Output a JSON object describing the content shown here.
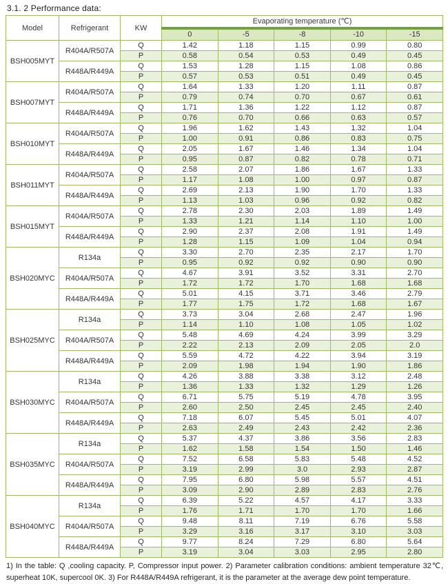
{
  "title": "3.1. 2 Performance data:",
  "table": {
    "col_headers": {
      "model": "Model",
      "refrigerant": "Refrigerant",
      "kw": "KW",
      "evap": "Evaporating temperature (℃)"
    },
    "temps": [
      "0",
      "-5",
      "-8",
      "-10",
      "-15"
    ],
    "row_labels": {
      "q": "Q",
      "p": "P"
    },
    "models": [
      {
        "name": "BSH005MYT",
        "refrigerants": [
          {
            "name": "R404A/R507A",
            "Q": [
              "1.42",
              "1.18",
              "1.15",
              "0.99",
              "0.80"
            ],
            "P": [
              "0.58",
              "0.54",
              "0.53",
              "0.49",
              "0.45"
            ]
          },
          {
            "name": "R448A/R449A",
            "Q": [
              "1.53",
              "1.28",
              "1.15",
              "1.08",
              "0.86"
            ],
            "P": [
              "0.57",
              "0.53",
              "0.51",
              "0.49",
              "0.45"
            ]
          }
        ]
      },
      {
        "name": "BSH007MYT",
        "refrigerants": [
          {
            "name": "R404A/R507A",
            "Q": [
              "1.64",
              "1.33",
              "1.20",
              "1.11",
              "0.87"
            ],
            "P": [
              "0.79",
              "0.74",
              "0.70",
              "0.67",
              "0.61"
            ]
          },
          {
            "name": "R448A/R449A",
            "Q": [
              "1.71",
              "1.36",
              "1.22",
              "1.12",
              "0.87"
            ],
            "P": [
              "0.76",
              "0.70",
              "0.66",
              "0.63",
              "0.57"
            ]
          }
        ]
      },
      {
        "name": "BSH010MYT",
        "refrigerants": [
          {
            "name": "R404A/R507A",
            "Q": [
              "1.96",
              "1.62",
              "1.43",
              "1.32",
              "1.04"
            ],
            "P": [
              "1.00",
              "0.91",
              "0.86",
              "0.83",
              "0.75"
            ]
          },
          {
            "name": "R448A/R449A",
            "Q": [
              "2.05",
              "1.67",
              "1.46",
              "1.34",
              "1.04"
            ],
            "P": [
              "0.95",
              "0.87",
              "0.82",
              "0.78",
              "0.71"
            ]
          }
        ]
      },
      {
        "name": "BSH011MYT",
        "refrigerants": [
          {
            "name": "R404A/R507A",
            "Q": [
              "2.58",
              "2.07",
              "1.86",
              "1.67",
              "1.33"
            ],
            "P": [
              "1.17",
              "1.08",
              "1.00",
              "0.97",
              "0.87"
            ]
          },
          {
            "name": "R448A/R449A",
            "Q": [
              "2.69",
              "2.13",
              "1.90",
              "1.70",
              "1.33"
            ],
            "P": [
              "1.13",
              "1.03",
              "0.96",
              "0.92",
              "0.82"
            ]
          }
        ]
      },
      {
        "name": "BSH015MYT",
        "refrigerants": [
          {
            "name": "R404A/R507A",
            "Q": [
              "2.78",
              "2.30",
              "2.03",
              "1.89",
              "1.49"
            ],
            "P": [
              "1.33",
              "1.21",
              "1.14",
              "1.10",
              "1.00"
            ]
          },
          {
            "name": "R448A/R449A",
            "Q": [
              "2.90",
              "2.37",
              "2.08",
              "1.91",
              "1.49"
            ],
            "P": [
              "1.28",
              "1.15",
              "1.09",
              "1.04",
              "0.94"
            ]
          }
        ]
      },
      {
        "name": "BSH020MYC",
        "refrigerants": [
          {
            "name": "R134a",
            "Q": [
              "3.30",
              "2.70",
              "2.35",
              "2.17",
              "1.70"
            ],
            "P": [
              "0.95",
              "0.92",
              "0.92",
              "0.90",
              "0.90"
            ]
          },
          {
            "name": "R404A/R507A",
            "Q": [
              "4.67",
              "3.91",
              "3.52",
              "3.31",
              "2.70"
            ],
            "P": [
              "1.72",
              "1.72",
              "1.70",
              "1.68",
              "1.68"
            ]
          },
          {
            "name": "R448A/R449A",
            "Q": [
              "5.01",
              "4.15",
              "3.71",
              "3.46",
              "2.79"
            ],
            "P": [
              "1.77",
              "1.75",
              "1.72",
              "1.68",
              "1.67"
            ]
          }
        ]
      },
      {
        "name": "BSH025MYC",
        "refrigerants": [
          {
            "name": "R134a",
            "Q": [
              "3.73",
              "3.04",
              "2.68",
              "2.47",
              "1.96"
            ],
            "P": [
              "1.14",
              "1.10",
              "1.08",
              "1.05",
              "1.02"
            ]
          },
          {
            "name": "R404A/R507A",
            "Q": [
              "5.48",
              "4.69",
              "4.24",
              "3.99",
              "3.29"
            ],
            "P": [
              "2.22",
              "2.13",
              "2.09",
              "2.05",
              "2.0"
            ]
          },
          {
            "name": "R448A/R449A",
            "Q": [
              "5.59",
              "4.72",
              "4.22",
              "3.94",
              "3.19"
            ],
            "P": [
              "2.09",
              "1.98",
              "1.94",
              "1.90",
              "1.86"
            ]
          }
        ]
      },
      {
        "name": "BSH030MYC",
        "refrigerants": [
          {
            "name": "R134a",
            "Q": [
              "4.26",
              "3.88",
              "3.38",
              "3.12",
              "2.48"
            ],
            "P": [
              "1.36",
              "1.33",
              "1.32",
              "1.29",
              "1.26"
            ]
          },
          {
            "name": "R404A/R507A",
            "Q": [
              "6.71",
              "5.75",
              "5.19",
              "4.78",
              "3.95"
            ],
            "P": [
              "2.60",
              "2.50",
              "2.45",
              "2.45",
              "2.40"
            ]
          },
          {
            "name": "R448A/R449A",
            "Q": [
              "7.18",
              "6.07",
              "5.45",
              "5.01",
              "4.07"
            ],
            "P": [
              "2.63",
              "2.49",
              "2.43",
              "2.42",
              "2.36"
            ]
          }
        ]
      },
      {
        "name": "BSH035MYC",
        "refrigerants": [
          {
            "name": "R134a",
            "Q": [
              "5.37",
              "4.37",
              "3.86",
              "3.56",
              "2.83"
            ],
            "P": [
              "1.62",
              "1.58",
              "1.54",
              "1.50",
              "1.46"
            ]
          },
          {
            "name": "R404A/R507A",
            "Q": [
              "7.52",
              "6.58",
              "5.83",
              "5.48",
              "4.52"
            ],
            "P": [
              "3.19",
              "2.99",
              "3.0",
              "2.93",
              "2.87"
            ]
          },
          {
            "name": "R448A/R449A",
            "Q": [
              "7.95",
              "6.80",
              "5.98",
              "5.57",
              "4.51"
            ],
            "P": [
              "3.09",
              "2.90",
              "2.89",
              "2.83",
              "2.76"
            ]
          }
        ]
      },
      {
        "name": "BSH040MYC",
        "refrigerants": [
          {
            "name": "R134a",
            "Q": [
              "6.39",
              "5.22",
              "4.57",
              "4.17",
              "3.33"
            ],
            "P": [
              "1.76",
              "1.71",
              "1.70",
              "1.70",
              "1.66"
            ]
          },
          {
            "name": "R404A/R507A",
            "Q": [
              "9.48",
              "8.11",
              "7.19",
              "6.76",
              "5.58"
            ],
            "P": [
              "3.29",
              "3.16",
              "3.17",
              "3.10",
              "3.03"
            ]
          },
          {
            "name": "R448A/R449A",
            "Q": [
              "9.77",
              "8.24",
              "7.29",
              "6.80",
              "5.64"
            ],
            "P": [
              "3.19",
              "3.04",
              "3.03",
              "2.95",
              "2.80"
            ]
          }
        ]
      }
    ]
  },
  "footnote": "1) In the table: Q ,cooling capacity. P, Compressor input power.    2) Parameter calibration conditions: ambient temperature 32℃, superheat 10K, supercool 0K.    3) For R448A/R449A refrigerant, it is the parameter at the average dew point temperature.",
  "colors": {
    "border": "#9dbb62",
    "header_band": "#73a13c",
    "row_fill": "#e9f1da",
    "subheader_fill": "#dce8c2",
    "text": "#313131"
  }
}
